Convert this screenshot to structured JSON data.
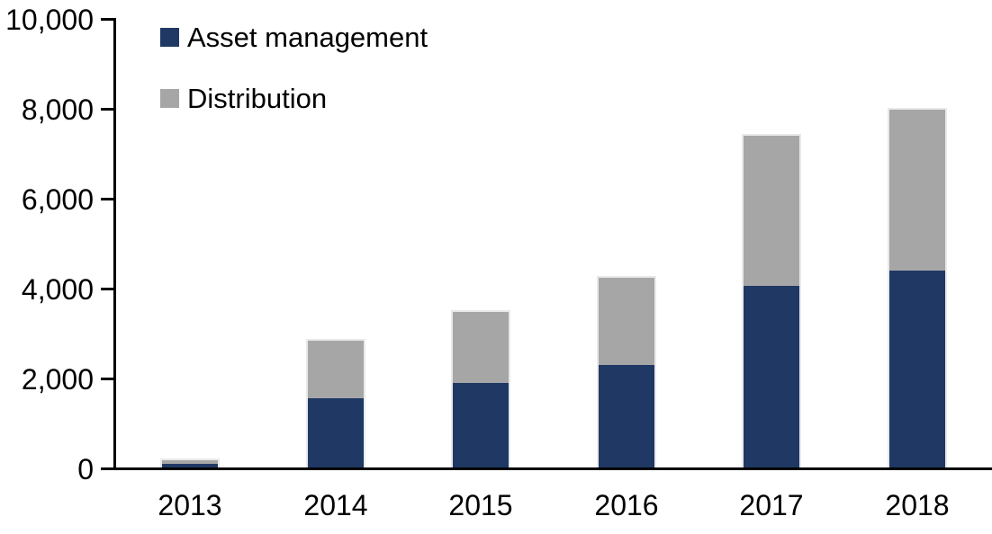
{
  "chart_data": {
    "type": "bar",
    "stacked": true,
    "title": "",
    "xlabel": "",
    "ylabel": "",
    "categories": [
      "2013",
      "2014",
      "2015",
      "2016",
      "2017",
      "2018"
    ],
    "series": [
      {
        "name": "Asset management",
        "color": "#1F3864",
        "values": [
          100,
          1550,
          1900,
          2300,
          4050,
          4400
        ]
      },
      {
        "name": "Distribution",
        "color": "#A6A6A6",
        "values": [
          100,
          1300,
          1600,
          1950,
          3350,
          3600
        ]
      }
    ],
    "stack_totals": [
      200,
      2850,
      3500,
      4250,
      7400,
      8000
    ],
    "ylim": [
      0,
      10000
    ],
    "ytick_interval": 2000,
    "yticks": [
      0,
      2000,
      4000,
      6000,
      8000,
      10000
    ],
    "ytick_labels": [
      "0",
      "2,000",
      "4,000",
      "6,000",
      "8,000",
      "10,000"
    ],
    "grid": false,
    "legend_position": "top-left-inside",
    "axis_color": "#000000",
    "bar_outline_color": "#e9e9e9"
  }
}
